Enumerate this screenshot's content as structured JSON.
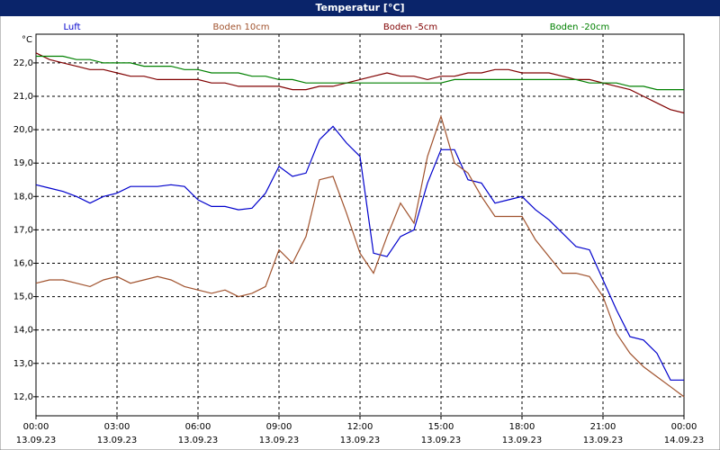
{
  "chart_data": {
    "type": "line",
    "title": "Temperatur [°C]",
    "y_unit": "°C",
    "x": [
      0,
      0.5,
      1,
      1.5,
      2,
      2.5,
      3,
      3.5,
      4,
      4.5,
      5,
      5.5,
      6,
      6.5,
      7,
      7.5,
      8,
      8.5,
      9,
      9.5,
      10,
      10.5,
      11,
      11.5,
      12,
      12.5,
      13,
      13.5,
      14,
      14.5,
      15,
      15.5,
      16,
      16.5,
      17,
      17.5,
      18,
      18.5,
      19,
      19.5,
      20,
      20.5,
      21,
      21.5,
      22,
      22.5,
      23,
      23.5,
      24
    ],
    "xlim": [
      0,
      24
    ],
    "xticks": [
      {
        "value": 0,
        "label": "00:00",
        "date": "13.09.23"
      },
      {
        "value": 3,
        "label": "03:00",
        "date": "13.09.23"
      },
      {
        "value": 6,
        "label": "06:00",
        "date": "13.09.23"
      },
      {
        "value": 9,
        "label": "09:00",
        "date": "13.09.23"
      },
      {
        "value": 12,
        "label": "12:00",
        "date": "13.09.23"
      },
      {
        "value": 15,
        "label": "15:00",
        "date": "13.09.23"
      },
      {
        "value": 18,
        "label": "18:00",
        "date": "13.09.23"
      },
      {
        "value": 21,
        "label": "21:00",
        "date": "13.09.23"
      },
      {
        "value": 24,
        "label": "00:00",
        "date": "14.09.23"
      }
    ],
    "ylim": [
      11.43,
      22.86
    ],
    "yticks": [
      {
        "value": 12,
        "label": "12,0"
      },
      {
        "value": 13,
        "label": "13,0"
      },
      {
        "value": 14,
        "label": "14,0"
      },
      {
        "value": 15,
        "label": "15,0"
      },
      {
        "value": 16,
        "label": "16,0"
      },
      {
        "value": 17,
        "label": "17,0"
      },
      {
        "value": 18,
        "label": "18,0"
      },
      {
        "value": 19,
        "label": "19,0"
      },
      {
        "value": 20,
        "label": "20,0"
      },
      {
        "value": 21,
        "label": "21,0"
      },
      {
        "value": 22,
        "label": "22,0"
      }
    ],
    "grid": true,
    "series": [
      {
        "name": "Luft",
        "color": "#0000cc",
        "values": [
          18.35,
          18.25,
          18.15,
          18.0,
          17.8,
          18.0,
          18.1,
          18.3,
          18.3,
          18.3,
          18.35,
          18.3,
          17.9,
          17.7,
          17.7,
          17.6,
          17.65,
          18.1,
          18.9,
          18.6,
          18.7,
          19.7,
          20.1,
          19.6,
          19.2,
          16.3,
          16.2,
          16.8,
          17.0,
          18.4,
          19.4,
          19.4,
          18.5,
          18.4,
          17.8,
          17.9,
          18.0,
          17.6,
          17.3,
          16.9,
          16.5,
          16.4,
          15.5,
          14.6,
          13.8,
          13.7,
          13.3,
          12.5,
          12.5
        ]
      },
      {
        "name": "Boden 10cm",
        "color": "#a0522d",
        "values": [
          15.4,
          15.5,
          15.5,
          15.4,
          15.3,
          15.5,
          15.6,
          15.4,
          15.5,
          15.6,
          15.5,
          15.3,
          15.2,
          15.1,
          15.2,
          15.0,
          15.1,
          15.3,
          16.4,
          16.0,
          16.8,
          18.5,
          18.6,
          17.5,
          16.3,
          15.7,
          16.8,
          17.8,
          17.2,
          19.2,
          20.4,
          19.0,
          18.7,
          18.0,
          17.4,
          17.4,
          17.4,
          16.7,
          16.2,
          15.7,
          15.7,
          15.6,
          15.0,
          13.9,
          13.3,
          12.9,
          12.6,
          12.3,
          12.0
        ]
      },
      {
        "name": "Boden -5cm",
        "color": "#800000",
        "values": [
          22.3,
          22.1,
          22.0,
          21.9,
          21.8,
          21.8,
          21.7,
          21.6,
          21.6,
          21.5,
          21.5,
          21.5,
          21.5,
          21.4,
          21.4,
          21.3,
          21.3,
          21.3,
          21.3,
          21.2,
          21.2,
          21.3,
          21.3,
          21.4,
          21.5,
          21.6,
          21.7,
          21.6,
          21.6,
          21.5,
          21.6,
          21.6,
          21.7,
          21.7,
          21.8,
          21.8,
          21.7,
          21.7,
          21.7,
          21.6,
          21.5,
          21.5,
          21.4,
          21.3,
          21.2,
          21.0,
          20.8,
          20.6,
          20.5
        ]
      },
      {
        "name": "Boden -20cm",
        "color": "#008000",
        "values": [
          22.2,
          22.2,
          22.2,
          22.1,
          22.1,
          22.0,
          22.0,
          22.0,
          21.9,
          21.9,
          21.9,
          21.8,
          21.8,
          21.7,
          21.7,
          21.7,
          21.6,
          21.6,
          21.5,
          21.5,
          21.4,
          21.4,
          21.4,
          21.4,
          21.4,
          21.4,
          21.4,
          21.4,
          21.4,
          21.4,
          21.4,
          21.5,
          21.5,
          21.5,
          21.5,
          21.5,
          21.5,
          21.5,
          21.5,
          21.5,
          21.5,
          21.4,
          21.4,
          21.4,
          21.3,
          21.3,
          21.2,
          21.2,
          21.2
        ]
      }
    ]
  }
}
